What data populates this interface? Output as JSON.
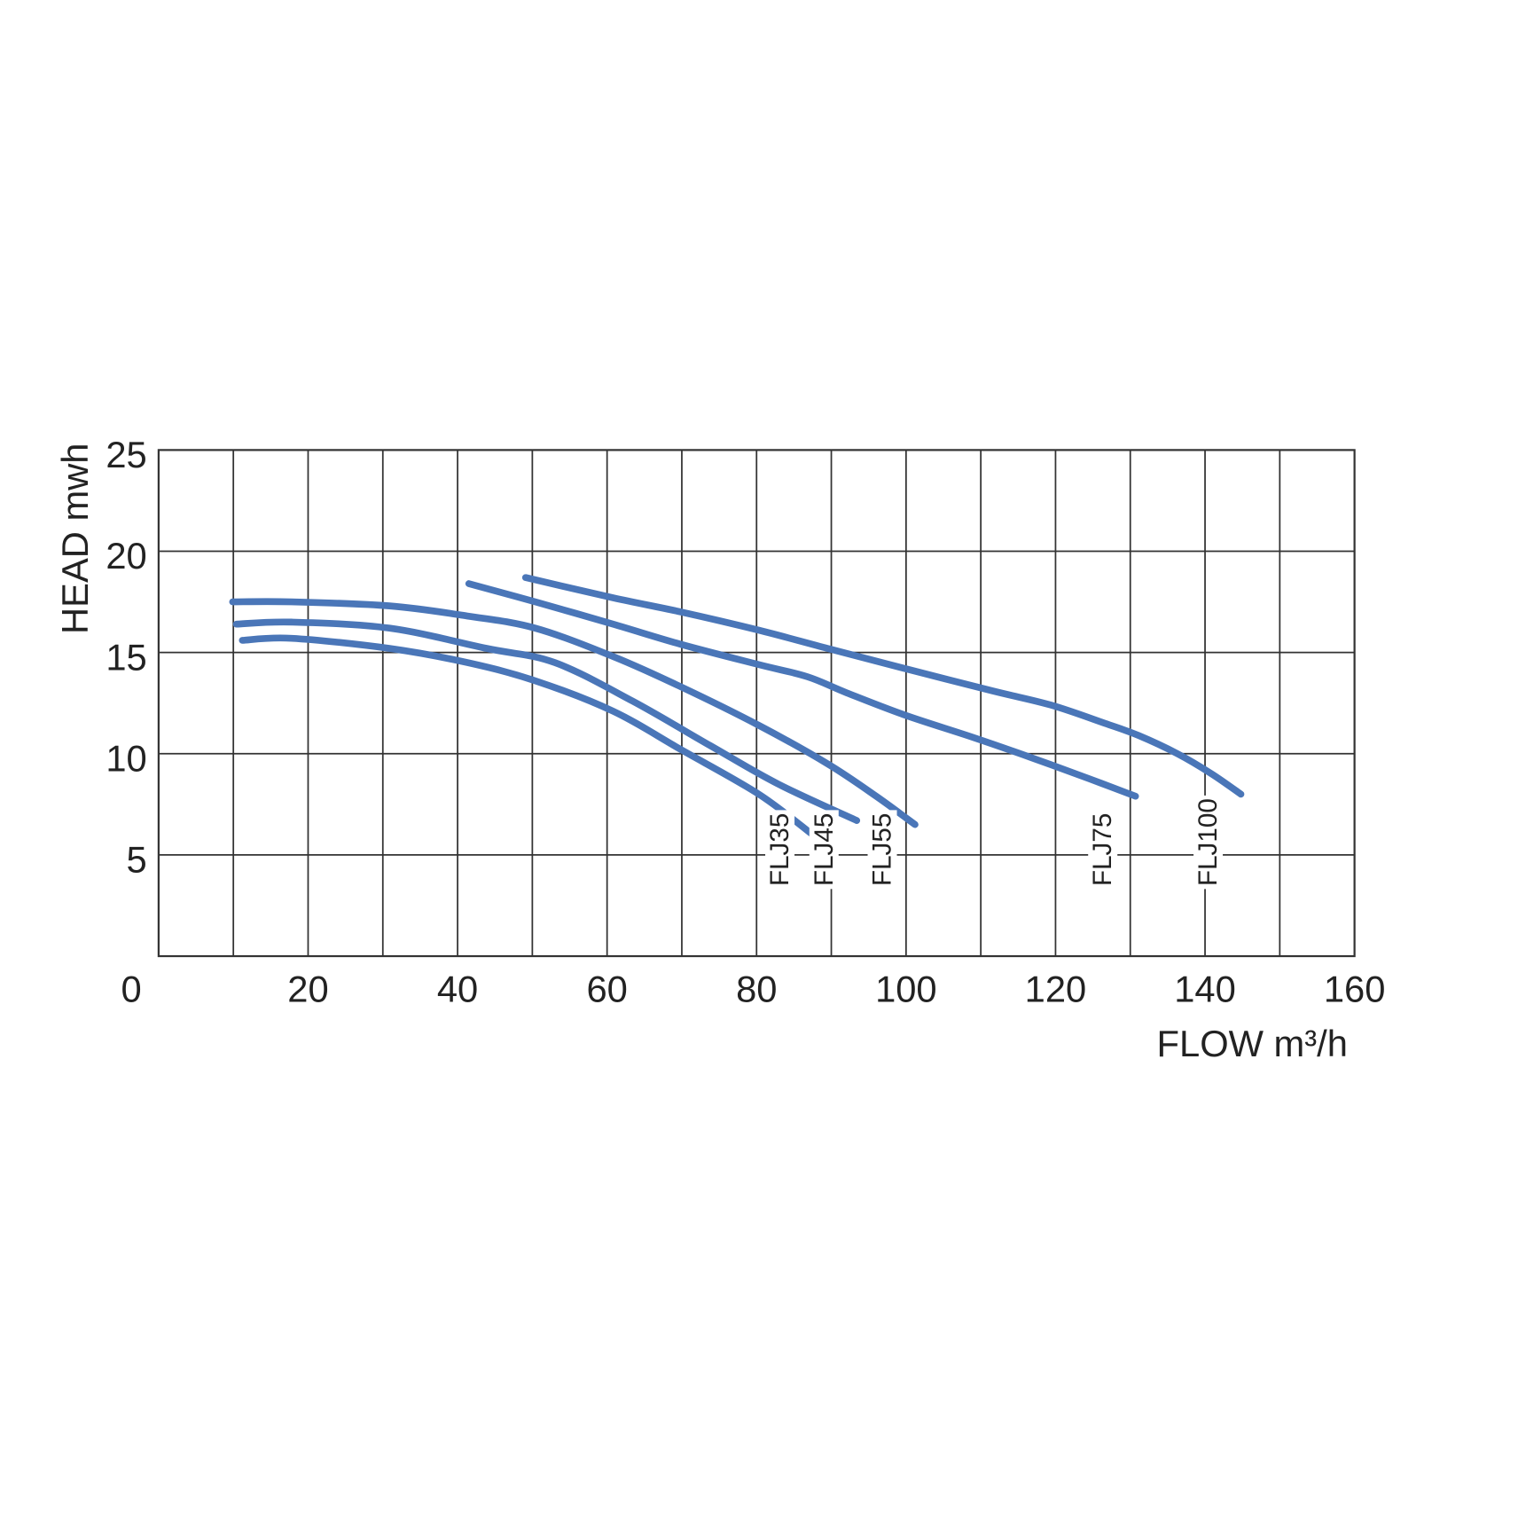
{
  "chart_data": {
    "type": "line",
    "x_label": "FLOW  m³/h",
    "y_label": "HEAD mwh",
    "xlim": [
      0,
      160
    ],
    "xticks": [
      0,
      20,
      40,
      60,
      80,
      100,
      120,
      140,
      160
    ],
    "xminorticks": [
      10,
      30,
      50,
      70,
      90,
      110,
      130,
      150
    ],
    "ylim": [
      0,
      25
    ],
    "yticks": [
      5,
      10,
      15,
      20,
      25
    ],
    "grid": true,
    "series": [
      {
        "name": "FLJ35",
        "color": "#4a76b8",
        "x": [
          11.2,
          17.8,
          30.9,
          41.3,
          50.4,
          60.8,
          69.9,
          80.3,
          87.5
        ],
        "values": [
          15.6,
          15.7,
          15.2,
          14.5,
          13.6,
          12.1,
          10.2,
          8.0,
          6.0
        ]
      },
      {
        "name": "FLJ45",
        "color": "#4a76b8",
        "x": [
          10.4,
          17.8,
          30.9,
          43.9,
          53.0,
          63.4,
          73.8,
          82.9,
          93.4
        ],
        "values": [
          16.4,
          16.5,
          16.2,
          15.2,
          14.5,
          12.6,
          10.4,
          8.5,
          6.7
        ]
      },
      {
        "name": "FLJ55",
        "color": "#4a76b8",
        "x": [
          9.9,
          17.8,
          30.9,
          41.3,
          50.4,
          60.8,
          69.9,
          80.3,
          89.5,
          96.0,
          101.2
        ],
        "values": [
          17.5,
          17.5,
          17.3,
          16.8,
          16.2,
          14.8,
          13.3,
          11.4,
          9.5,
          7.9,
          6.5
        ]
      },
      {
        "name": "FLJ75",
        "color": "#4a76b8",
        "x": [
          41.5,
          50.4,
          60.8,
          69.9,
          80.3,
          86.8,
          92.1,
          99.9,
          109.0,
          116.8,
          124.6,
          130.7
        ],
        "values": [
          18.4,
          17.5,
          16.4,
          15.4,
          14.4,
          13.8,
          13.0,
          11.9,
          10.8,
          9.8,
          8.75,
          7.9
        ]
      },
      {
        "name": "FLJ100",
        "color": "#4a76b8",
        "x": [
          49.1,
          60.8,
          69.9,
          80.3,
          89.5,
          99.9,
          111.6,
          119.4,
          126.6,
          131.1,
          136.3,
          140.9,
          144.8
        ],
        "values": [
          18.7,
          17.7,
          17.0,
          16.1,
          15.2,
          14.2,
          13.1,
          12.4,
          11.5,
          10.9,
          10.0,
          9.0,
          8.0
        ]
      }
    ]
  }
}
